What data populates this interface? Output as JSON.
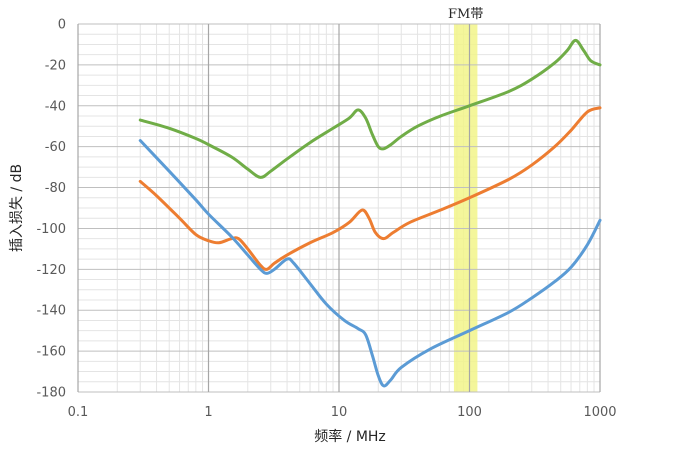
{
  "chart_data": {
    "type": "line",
    "xlabel": "频率 / MHz",
    "ylabel": "插入损失 / dB",
    "x_scale": "log",
    "xlim": [
      0.1,
      1000
    ],
    "ylim": [
      -180,
      0
    ],
    "x_ticks": [
      "0.1",
      "1",
      "10",
      "100",
      "1000"
    ],
    "y_ticks": [
      "0",
      "-20",
      "-40",
      "-60",
      "-80",
      "-100",
      "-120",
      "-140",
      "-160",
      "-180"
    ],
    "grid": true,
    "legend": "none",
    "band": {
      "label": "FM带",
      "x_from": 76,
      "x_to": 115,
      "color": "#f2f589"
    },
    "series": [
      {
        "color": "#70ad47",
        "points": [
          [
            0.3,
            -47
          ],
          [
            0.5,
            -51
          ],
          [
            0.8,
            -56
          ],
          [
            1.0,
            -59
          ],
          [
            1.5,
            -65
          ],
          [
            2.0,
            -71
          ],
          [
            2.5,
            -75
          ],
          [
            3.0,
            -72
          ],
          [
            4.0,
            -66
          ],
          [
            6.0,
            -58
          ],
          [
            9.0,
            -51
          ],
          [
            12.0,
            -46
          ],
          [
            14.0,
            -42
          ],
          [
            16.0,
            -46
          ],
          [
            18.0,
            -54
          ],
          [
            20.0,
            -60
          ],
          [
            22.0,
            -61
          ],
          [
            25.0,
            -59
          ],
          [
            30.0,
            -55
          ],
          [
            40.0,
            -50
          ],
          [
            60.0,
            -45
          ],
          [
            100.0,
            -40
          ],
          [
            200.0,
            -33
          ],
          [
            300.0,
            -27
          ],
          [
            450.0,
            -19
          ],
          [
            560.0,
            -13
          ],
          [
            650.0,
            -8
          ],
          [
            750.0,
            -13
          ],
          [
            850.0,
            -18
          ],
          [
            1000.0,
            -20
          ]
        ]
      },
      {
        "color": "#ed7d31",
        "points": [
          [
            0.3,
            -77
          ],
          [
            0.4,
            -84
          ],
          [
            0.6,
            -95
          ],
          [
            0.8,
            -103
          ],
          [
            1.0,
            -106
          ],
          [
            1.2,
            -107
          ],
          [
            1.5,
            -105
          ],
          [
            1.7,
            -105
          ],
          [
            2.0,
            -110
          ],
          [
            2.5,
            -118
          ],
          [
            2.8,
            -120
          ],
          [
            3.2,
            -117
          ],
          [
            4.0,
            -113
          ],
          [
            6.0,
            -107
          ],
          [
            9.0,
            -102
          ],
          [
            12.0,
            -97
          ],
          [
            15.0,
            -91
          ],
          [
            17.0,
            -95
          ],
          [
            19.0,
            -102
          ],
          [
            22.0,
            -105
          ],
          [
            26.0,
            -102
          ],
          [
            35.0,
            -97
          ],
          [
            60.0,
            -91
          ],
          [
            100.0,
            -85
          ],
          [
            200.0,
            -76
          ],
          [
            300.0,
            -69
          ],
          [
            450.0,
            -60
          ],
          [
            600.0,
            -52
          ],
          [
            800.0,
            -43
          ],
          [
            1000.0,
            -41
          ]
        ]
      },
      {
        "color": "#5b9bd5",
        "points": [
          [
            0.3,
            -57
          ],
          [
            0.5,
            -72
          ],
          [
            0.8,
            -86
          ],
          [
            1.0,
            -93
          ],
          [
            1.5,
            -104
          ],
          [
            2.0,
            -113
          ],
          [
            2.5,
            -120
          ],
          [
            2.8,
            -122
          ],
          [
            3.2,
            -120
          ],
          [
            4.0,
            -115
          ],
          [
            4.5,
            -117
          ],
          [
            6.0,
            -127
          ],
          [
            8.0,
            -137
          ],
          [
            11.0,
            -145
          ],
          [
            14.0,
            -149
          ],
          [
            16.0,
            -152
          ],
          [
            18.0,
            -162
          ],
          [
            20.0,
            -172
          ],
          [
            22.0,
            -177
          ],
          [
            25.0,
            -174
          ],
          [
            30.0,
            -168
          ],
          [
            50.0,
            -159
          ],
          [
            100.0,
            -150
          ],
          [
            200.0,
            -141
          ],
          [
            300.0,
            -134
          ],
          [
            450.0,
            -126
          ],
          [
            600.0,
            -119
          ],
          [
            800.0,
            -108
          ],
          [
            1000.0,
            -96
          ]
        ]
      }
    ]
  }
}
